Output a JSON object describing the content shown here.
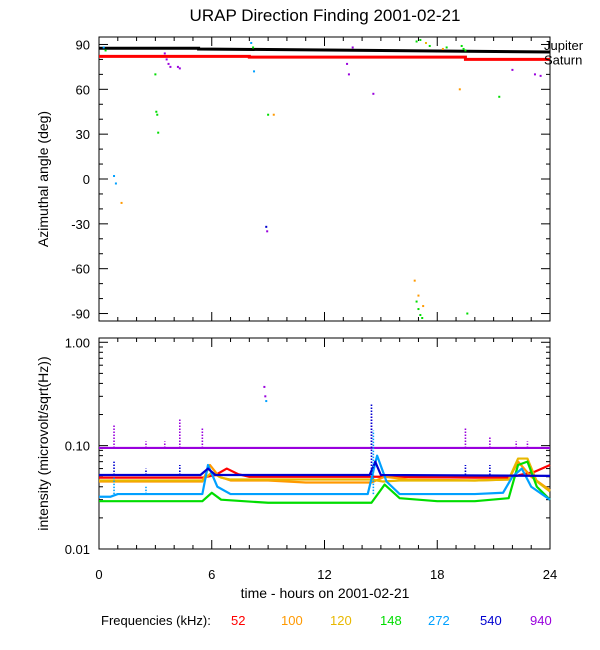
{
  "title": "URAP Direction Finding  2001-02-21",
  "xlabel": "time - hours on 2001-02-21",
  "legend_title": "Frequencies (kHz):",
  "colors": {
    "red": "#ff0000",
    "orange": "#ff9900",
    "gold": "#e8b800",
    "green": "#00dd00",
    "cyan": "#00a0ff",
    "blue": "#0000d0",
    "purple": "#9900dd",
    "black": "#000000"
  },
  "chart_data": [
    {
      "type": "scatter",
      "panel": "top",
      "ylabel": "Azimuthal angle (deg)",
      "xlim": [
        0,
        24
      ],
      "ylim": [
        -95,
        95
      ],
      "x_ticks": [
        0,
        6,
        12,
        18,
        24
      ],
      "x_tick_labels": [
        "0",
        "6",
        "12",
        "18",
        "24"
      ],
      "y_ticks": [
        90,
        60,
        30,
        0,
        -30,
        -60,
        -90
      ],
      "y_tick_labels": [
        "90",
        "60",
        "30",
        "0",
        "-30",
        "-60",
        "-90"
      ],
      "reference_lines": [
        {
          "name": "Jupiter",
          "color": "#000000",
          "x": [
            0,
            5.3,
            5.3,
            24
          ],
          "y": [
            87.5,
            87.5,
            87,
            85
          ]
        },
        {
          "name": "Saturn",
          "color": "#ff0000",
          "x": [
            0,
            8,
            8,
            19.5,
            19.5,
            24
          ],
          "y": [
            82,
            82,
            81.5,
            81.5,
            80,
            80
          ]
        }
      ],
      "points": [
        {
          "x": 0.25,
          "y": 88,
          "c": "cyan"
        },
        {
          "x": 0.35,
          "y": 86,
          "c": "green"
        },
        {
          "x": 0.8,
          "y": 2,
          "c": "cyan"
        },
        {
          "x": 0.9,
          "y": -3,
          "c": "cyan"
        },
        {
          "x": 1.2,
          "y": -16,
          "c": "orange"
        },
        {
          "x": 3.0,
          "y": 70,
          "c": "green"
        },
        {
          "x": 3.05,
          "y": 45,
          "c": "green"
        },
        {
          "x": 3.1,
          "y": 43,
          "c": "green"
        },
        {
          "x": 3.15,
          "y": 31,
          "c": "green"
        },
        {
          "x": 3.5,
          "y": 84,
          "c": "purple"
        },
        {
          "x": 3.6,
          "y": 80,
          "c": "purple"
        },
        {
          "x": 3.7,
          "y": 77,
          "c": "purple"
        },
        {
          "x": 3.8,
          "y": 75,
          "c": "purple"
        },
        {
          "x": 4.2,
          "y": 75,
          "c": "purple"
        },
        {
          "x": 4.3,
          "y": 74,
          "c": "purple"
        },
        {
          "x": 8.1,
          "y": 91,
          "c": "cyan"
        },
        {
          "x": 8.2,
          "y": 88,
          "c": "green"
        },
        {
          "x": 8.25,
          "y": 72,
          "c": "cyan"
        },
        {
          "x": 8.9,
          "y": -32,
          "c": "blue"
        },
        {
          "x": 8.95,
          "y": -35,
          "c": "purple"
        },
        {
          "x": 9.0,
          "y": 43,
          "c": "green"
        },
        {
          "x": 9.3,
          "y": 43,
          "c": "orange"
        },
        {
          "x": 13.2,
          "y": 77,
          "c": "purple"
        },
        {
          "x": 13.3,
          "y": 70,
          "c": "purple"
        },
        {
          "x": 13.5,
          "y": 88,
          "c": "purple"
        },
        {
          "x": 14.6,
          "y": 57,
          "c": "purple"
        },
        {
          "x": 16.8,
          "y": -68,
          "c": "orange"
        },
        {
          "x": 16.9,
          "y": -82,
          "c": "green"
        },
        {
          "x": 17.0,
          "y": -87,
          "c": "green"
        },
        {
          "x": 17.1,
          "y": -91,
          "c": "green"
        },
        {
          "x": 17.2,
          "y": -93,
          "c": "green"
        },
        {
          "x": 17.0,
          "y": -78,
          "c": "orange"
        },
        {
          "x": 17.25,
          "y": -85,
          "c": "orange"
        },
        {
          "x": 16.9,
          "y": 92,
          "c": "green"
        },
        {
          "x": 17.1,
          "y": 93,
          "c": "green"
        },
        {
          "x": 17.4,
          "y": 91,
          "c": "gold"
        },
        {
          "x": 17.6,
          "y": 89,
          "c": "green"
        },
        {
          "x": 18.3,
          "y": 87,
          "c": "orange"
        },
        {
          "x": 18.5,
          "y": 88,
          "c": "green"
        },
        {
          "x": 19.3,
          "y": 89,
          "c": "green"
        },
        {
          "x": 19.4,
          "y": 87,
          "c": "green"
        },
        {
          "x": 19.5,
          "y": 86,
          "c": "green"
        },
        {
          "x": 19.6,
          "y": -90,
          "c": "green"
        },
        {
          "x": 19.2,
          "y": 60,
          "c": "orange"
        },
        {
          "x": 21.3,
          "y": 55,
          "c": "green"
        },
        {
          "x": 22.0,
          "y": 73,
          "c": "purple"
        },
        {
          "x": 23.2,
          "y": 70,
          "c": "purple"
        },
        {
          "x": 23.5,
          "y": 69,
          "c": "purple"
        }
      ]
    },
    {
      "type": "line",
      "panel": "bottom",
      "ylabel": "intensity (microvolt/sqrt(Hz))",
      "y_scale": "log",
      "xlim": [
        0,
        24
      ],
      "ylim": [
        0.01,
        1.1
      ],
      "x_ticks": [
        0,
        6,
        12,
        18,
        24
      ],
      "x_tick_labels": [
        "0",
        "6",
        "12",
        "18",
        "24"
      ],
      "y_ticks": [
        1.0,
        0.1,
        0.01
      ],
      "y_tick_labels": [
        "1.00",
        "0.10",
        "0.01"
      ],
      "series": [
        {
          "name": "52",
          "color": "red",
          "x": [
            0,
            5.5,
            6.2,
            6.8,
            7.4,
            8,
            14.5,
            15.2,
            20,
            21.8,
            22.4,
            23.2,
            24
          ],
          "y": [
            0.049,
            0.049,
            0.052,
            0.06,
            0.053,
            0.05,
            0.05,
            0.05,
            0.049,
            0.049,
            0.052,
            0.056,
            0.065
          ]
        },
        {
          "name": "100",
          "color": "orange",
          "x": [
            0,
            5.5,
            5.9,
            6.4,
            7,
            9,
            11,
            14.5,
            15.2,
            16.5,
            20,
            21.8,
            22.3,
            23,
            24
          ],
          "y": [
            0.045,
            0.045,
            0.065,
            0.05,
            0.046,
            0.046,
            0.044,
            0.044,
            0.05,
            0.047,
            0.046,
            0.047,
            0.07,
            0.05,
            0.037
          ]
        },
        {
          "name": "120",
          "color": "gold",
          "x": [
            0,
            5.5,
            6,
            6.5,
            7,
            14.5,
            15.1,
            16,
            20,
            21.8,
            22.3,
            22.8,
            23.3,
            24
          ],
          "y": [
            0.046,
            0.046,
            0.055,
            0.049,
            0.047,
            0.047,
            0.045,
            0.046,
            0.046,
            0.047,
            0.075,
            0.075,
            0.045,
            0.036
          ]
        },
        {
          "name": "148",
          "color": "green",
          "x": [
            0,
            5.5,
            6,
            6.5,
            9,
            14.5,
            15.2,
            16,
            18,
            20,
            21.8,
            22.3,
            22.8,
            23.3,
            24
          ],
          "y": [
            0.029,
            0.029,
            0.035,
            0.03,
            0.028,
            0.028,
            0.042,
            0.031,
            0.029,
            0.029,
            0.031,
            0.065,
            0.07,
            0.04,
            0.03
          ]
        },
        {
          "name": "272",
          "color": "cyan",
          "x": [
            0,
            0.6,
            1,
            5.5,
            5.8,
            6.3,
            7,
            14.3,
            14.8,
            15.3,
            16,
            20,
            21.5,
            22,
            22.5,
            23,
            24
          ],
          "y": [
            0.032,
            0.032,
            0.034,
            0.034,
            0.065,
            0.04,
            0.034,
            0.034,
            0.08,
            0.045,
            0.034,
            0.034,
            0.035,
            0.05,
            0.06,
            0.04,
            0.03
          ]
        },
        {
          "name": "540",
          "color": "blue",
          "x": [
            0,
            5.4,
            5.8,
            6.2,
            12,
            14.4,
            14.7,
            15,
            24
          ],
          "y": [
            0.052,
            0.052,
            0.06,
            0.052,
            0.052,
            0.052,
            0.07,
            0.052,
            0.051
          ]
        },
        {
          "name": "940",
          "color": "purple",
          "x": [
            0,
            24
          ],
          "y": [
            0.095,
            0.095
          ]
        }
      ],
      "spikes": [
        {
          "c": "purple",
          "x": 0.8,
          "top": 0.16,
          "base": 0.095
        },
        {
          "c": "purple",
          "x": 2.5,
          "top": 0.11,
          "base": 0.095
        },
        {
          "c": "purple",
          "x": 3.5,
          "top": 0.11,
          "base": 0.095
        },
        {
          "c": "purple",
          "x": 4.3,
          "top": 0.18,
          "base": 0.095
        },
        {
          "c": "purple",
          "x": 5.5,
          "top": 0.15,
          "base": 0.095
        },
        {
          "c": "purple",
          "x": 14.5,
          "top": 0.2,
          "base": 0.095
        },
        {
          "c": "purple",
          "x": 19.5,
          "top": 0.15,
          "base": 0.095
        },
        {
          "c": "purple",
          "x": 20.8,
          "top": 0.12,
          "base": 0.095
        },
        {
          "c": "purple",
          "x": 22.2,
          "top": 0.11,
          "base": 0.095
        },
        {
          "c": "purple",
          "x": 22.8,
          "top": 0.11,
          "base": 0.095
        },
        {
          "c": "blue",
          "x": 0.8,
          "top": 0.07,
          "base": 0.052
        },
        {
          "c": "blue",
          "x": 2.5,
          "top": 0.06,
          "base": 0.052
        },
        {
          "c": "blue",
          "x": 4.3,
          "top": 0.065,
          "base": 0.052
        },
        {
          "c": "blue",
          "x": 14.5,
          "top": 0.25,
          "base": 0.052
        },
        {
          "c": "blue",
          "x": 19.5,
          "top": 0.065,
          "base": 0.052
        },
        {
          "c": "blue",
          "x": 20.8,
          "top": 0.065,
          "base": 0.052
        },
        {
          "c": "cyan",
          "x": 0.8,
          "top": 0.05,
          "base": 0.034
        },
        {
          "c": "cyan",
          "x": 2.5,
          "top": 0.04,
          "base": 0.034
        },
        {
          "c": "cyan",
          "x": 14.6,
          "top": 0.14,
          "base": 0.034
        }
      ],
      "points": [
        {
          "x": 8.8,
          "y": 0.37,
          "c": "purple"
        },
        {
          "x": 8.85,
          "y": 0.3,
          "c": "purple"
        },
        {
          "x": 8.9,
          "y": 0.27,
          "c": "cyan"
        }
      ]
    }
  ],
  "legend": [
    {
      "label": "52",
      "color": "#ff0000"
    },
    {
      "label": "100",
      "color": "#ff9900"
    },
    {
      "label": "120",
      "color": "#e8b800"
    },
    {
      "label": "148",
      "color": "#00dd00"
    },
    {
      "label": "272",
      "color": "#00a0ff"
    },
    {
      "label": "540",
      "color": "#0000d0"
    },
    {
      "label": "940",
      "color": "#9900dd"
    }
  ]
}
